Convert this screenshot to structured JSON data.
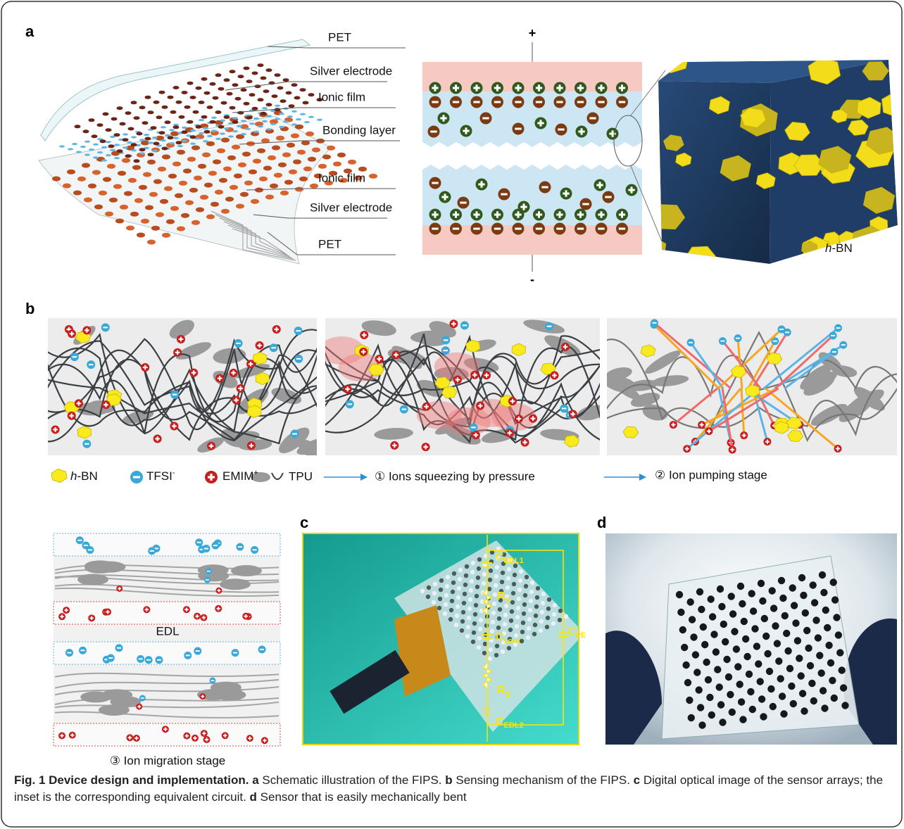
{
  "panel_a": {
    "label": "a",
    "layer_labels": [
      "PET",
      "Silver electrode",
      "Ionic film",
      "Bonding layer",
      "Ionic film",
      "Silver electrode",
      "PET"
    ],
    "positive": "+",
    "negative": "-",
    "cube_label": {
      "italic": "h",
      "rest": "-BN"
    }
  },
  "panel_b": {
    "label": "b",
    "legend": {
      "hbn": {
        "italic": "h",
        "rest": "-BN"
      },
      "tfsi": {
        "text": "TFSI",
        "sup": "-"
      },
      "emim": {
        "text": "EMIM",
        "sup": "+"
      },
      "tpu": "TPU"
    },
    "stages": [
      "① Ions squeezing by pressure",
      "② Ion pumping stage",
      "③ Ion migration stage"
    ],
    "edl": "EDL"
  },
  "panel_c": {
    "label": "c",
    "circuit": [
      {
        "main": "C",
        "sub": "EDL1"
      },
      {
        "main": "R",
        "sub": "S"
      },
      {
        "main": "C",
        "sub": "cont"
      },
      {
        "main": "C",
        "sub": "PE"
      },
      {
        "main": "R",
        "sub": "S"
      },
      {
        "main": "C",
        "sub": "EDL2"
      }
    ]
  },
  "panel_d": {
    "label": "d"
  },
  "caption": {
    "title": "Fig. 1 Device design and implementation.",
    "parts": [
      {
        "label": "a",
        "text": "Schematic illustration of the FIPS."
      },
      {
        "label": "b",
        "text": "Sensing mechanism of the FIPS."
      },
      {
        "label": "c",
        "text": "Digital optical image of the sensor arrays; the inset is the corresponding equivalent circuit."
      },
      {
        "label": "d",
        "text": "Sensor that is easily mechanically bent"
      }
    ]
  }
}
